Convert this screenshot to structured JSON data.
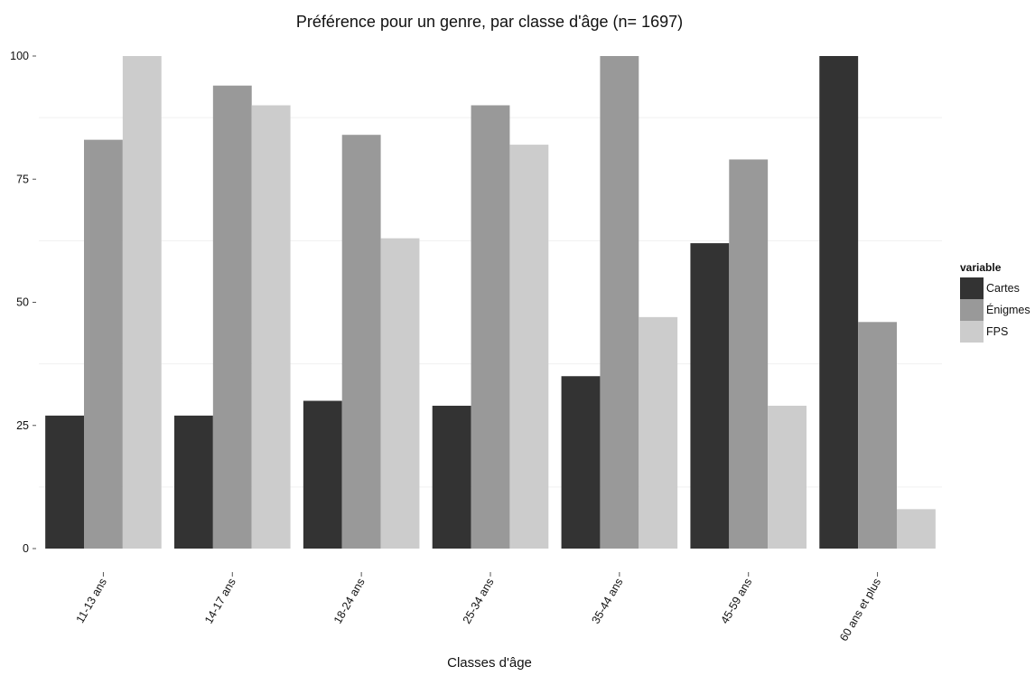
{
  "chart_data": {
    "type": "bar",
    "title": "Préférence pour un genre, par classe d'âge (n= 1697)",
    "xlabel": "Classes d'âge",
    "ylabel": "",
    "ylim": [
      0,
      100
    ],
    "yticks": [
      "0",
      "25",
      "50",
      "75",
      "100"
    ],
    "grid": true,
    "legend": {
      "title": "variable",
      "placement": "right"
    },
    "categories": [
      "11-13 ans",
      "14-17 ans",
      "18-24 ans",
      "25-34 ans",
      "35-44 ans",
      "45-59 ans",
      "60 ans et plus"
    ],
    "series": [
      {
        "name": "Cartes",
        "color": "#333333",
        "values": [
          27,
          27,
          30,
          29,
          35,
          62,
          100
        ]
      },
      {
        "name": "Énigmes",
        "color": "#999999",
        "values": [
          83,
          94,
          84,
          90,
          100,
          79,
          46
        ]
      },
      {
        "name": "FPS",
        "color": "#cccccc",
        "values": [
          100,
          90,
          63,
          82,
          47,
          29,
          8
        ]
      }
    ]
  }
}
